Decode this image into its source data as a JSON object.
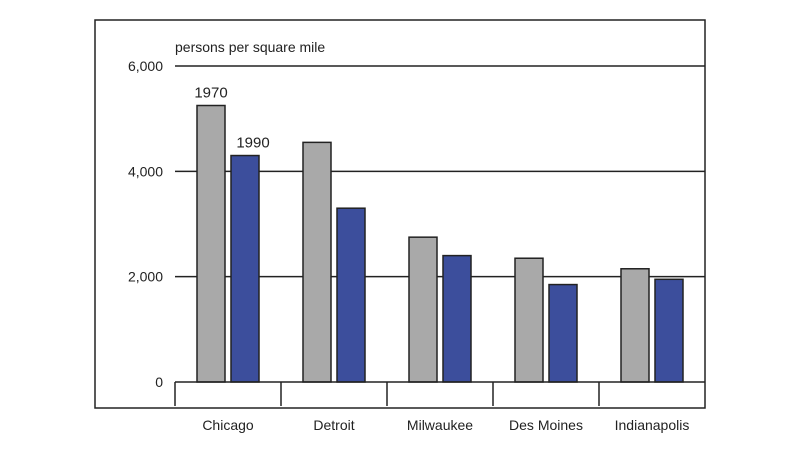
{
  "chart_data": {
    "type": "bar",
    "ylabel": "persons per square mile",
    "categories": [
      "Chicago",
      "Detroit",
      "Milwaukee",
      "Des Moines",
      "Indianapolis"
    ],
    "series": [
      {
        "name": "1970",
        "values": [
          5250,
          4550,
          2750,
          2350,
          2150
        ],
        "color": "#a9a9a9"
      },
      {
        "name": "1990",
        "values": [
          4300,
          3300,
          2400,
          1850,
          1950
        ],
        "color": "#3c4e9c"
      }
    ],
    "yticks": [
      {
        "value": 0,
        "label": "0"
      },
      {
        "value": 2000,
        "label": "2,000"
      },
      {
        "value": 4000,
        "label": "4,000"
      },
      {
        "value": 6000,
        "label": "6,000"
      }
    ],
    "ylim": [
      0,
      6000
    ],
    "grid": true,
    "legend": "direct labels above first category bars"
  }
}
